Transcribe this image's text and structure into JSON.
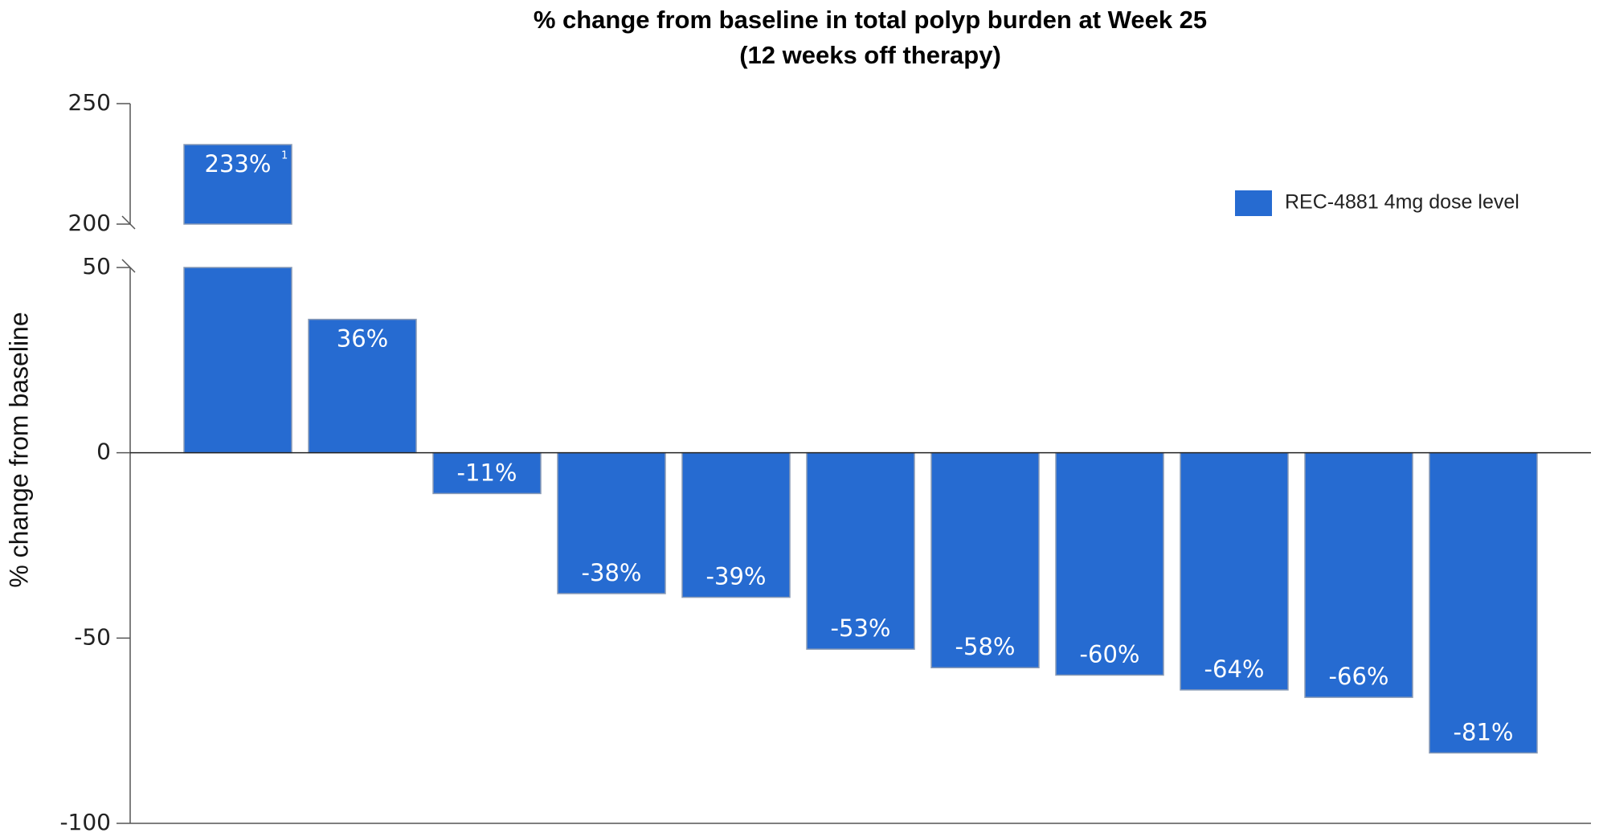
{
  "chart_data": {
    "type": "bar",
    "title": "% change from baseline in total polyp burden at Week 25",
    "subtitle": "(12 weeks off therapy)",
    "y_label": "% change from baseline",
    "series": [
      {
        "name": "REC-4881 4mg dose level",
        "color": "#266bd1",
        "values": [
          233,
          36,
          -11,
          -38,
          -39,
          -53,
          -58,
          -60,
          -64,
          -66,
          -81
        ],
        "value_labels": [
          "233%",
          "36%",
          "-11%",
          "-38%",
          "-39%",
          "-53%",
          "-58%",
          "-60%",
          "-64%",
          "-66%",
          "-81%"
        ],
        "value_label_notes": [
          "1",
          null,
          null,
          null,
          null,
          null,
          null,
          null,
          null,
          null,
          null
        ]
      }
    ],
    "ylim": [
      -100,
      250
    ],
    "yticks": [
      -100,
      -50,
      0,
      50,
      200,
      250
    ],
    "axis_break": [
      50,
      200
    ],
    "grid": false,
    "legend": "upper right"
  }
}
